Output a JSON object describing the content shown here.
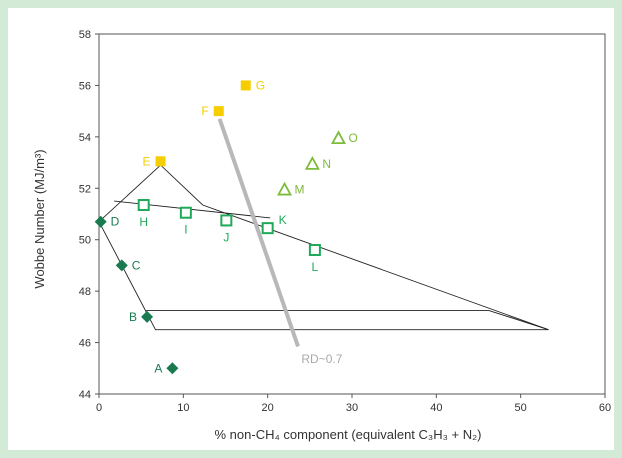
{
  "chart_data": {
    "type": "scatter",
    "xlabel": "% non-CH₄ component (equivalent C₃H₃ + N₂)",
    "ylabel": "Wobbe Number (MJ/m³)",
    "xlim": [
      0,
      60
    ],
    "ylim": [
      44,
      58
    ],
    "x_ticks": [
      0,
      10,
      20,
      30,
      40,
      50,
      60
    ],
    "y_ticks": [
      44,
      46,
      48,
      50,
      52,
      54,
      56,
      58
    ],
    "grid": false,
    "colors": {
      "diamond": "#1a7a4f",
      "square_open": "#1faa5a",
      "square_filled": "#f5cd00",
      "triangle_open": "#7dbb3a",
      "line": "#b8b8b8",
      "label_dark": "#1a7a4f",
      "label_light": "#aaaaaa"
    },
    "points": [
      {
        "label": "A",
        "x": 8.7,
        "y": 45.0,
        "marker": "diamond",
        "color": "#1a7a4f",
        "label_side": "left"
      },
      {
        "label": "B",
        "x": 5.7,
        "y": 47.0,
        "marker": "diamond",
        "color": "#1a7a4f",
        "label_side": "left"
      },
      {
        "label": "C",
        "x": 2.7,
        "y": 49.0,
        "marker": "diamond",
        "color": "#1a7a4f",
        "label_side": "right"
      },
      {
        "label": "D",
        "x": 0.2,
        "y": 50.7,
        "marker": "diamond",
        "color": "#1a7a4f",
        "label_side": "right"
      },
      {
        "label": "E",
        "x": 7.3,
        "y": 53.05,
        "marker": "square_filled",
        "color": "#f5cd00",
        "label_side": "left"
      },
      {
        "label": "F",
        "x": 14.2,
        "y": 55.0,
        "marker": "square_filled",
        "color": "#f5cd00",
        "label_side": "left"
      },
      {
        "label": "G",
        "x": 17.4,
        "y": 56.0,
        "marker": "square_filled",
        "color": "#f5cd00",
        "label_side": "right"
      },
      {
        "label": "H",
        "x": 5.3,
        "y": 51.35,
        "marker": "square_open",
        "color": "#1faa5a",
        "label_side": "below"
      },
      {
        "label": "I",
        "x": 10.3,
        "y": 51.05,
        "marker": "square_open",
        "color": "#1faa5a",
        "label_side": "below"
      },
      {
        "label": "J",
        "x": 15.1,
        "y": 50.75,
        "marker": "square_open",
        "color": "#1faa5a",
        "label_side": "below"
      },
      {
        "label": "K",
        "x": 20.0,
        "y": 50.45,
        "marker": "square_open",
        "color": "#1faa5a",
        "label_side": "upright"
      },
      {
        "label": "L",
        "x": 25.6,
        "y": 49.6,
        "marker": "square_open",
        "color": "#1faa5a",
        "label_side": "below"
      },
      {
        "label": "M",
        "x": 22.0,
        "y": 51.95,
        "marker": "triangle_open",
        "color": "#7dbb3a",
        "label_side": "right"
      },
      {
        "label": "N",
        "x": 25.3,
        "y": 52.95,
        "marker": "triangle_open",
        "color": "#7dbb3a",
        "label_side": "right"
      },
      {
        "label": "O",
        "x": 28.4,
        "y": 53.95,
        "marker": "triangle_open",
        "color": "#7dbb3a",
        "label_side": "right"
      }
    ],
    "envelope_outer": [
      [
        0,
        50.7
      ],
      [
        7.3,
        52.9
      ],
      [
        12.3,
        51.35
      ],
      [
        53.3,
        46.5
      ],
      [
        6.7,
        46.5
      ],
      [
        0,
        50.7
      ]
    ],
    "envelope_inner": [
      [
        1.8,
        51.5
      ],
      [
        20.3,
        50.85
      ]
    ],
    "envelope_lower_band": [
      [
        5.6,
        47.25
      ],
      [
        46.2,
        47.25
      ],
      [
        53.3,
        46.5
      ]
    ],
    "rd_line": {
      "label": "RD~0.7",
      "points": [
        [
          14.3,
          54.7
        ],
        [
          23.6,
          45.85
        ]
      ],
      "label_at": [
        24.0,
        45.4
      ]
    }
  }
}
